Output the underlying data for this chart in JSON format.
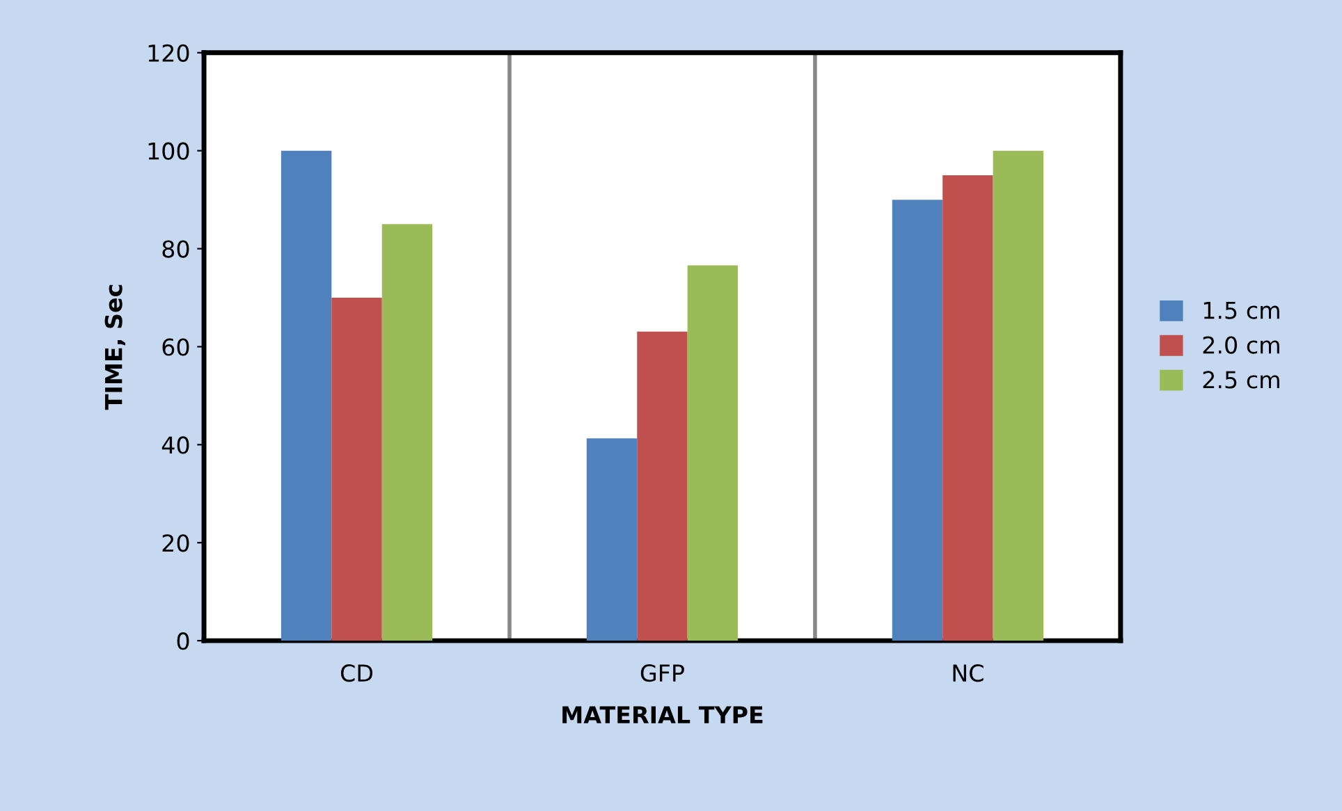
{
  "chart_data": {
    "type": "bar",
    "xlabel": "MATERIAL TYPE",
    "ylabel": "TIME, Sec",
    "categories": [
      "CD",
      "GFP",
      "NC"
    ],
    "series": [
      {
        "name": "1.5 cm",
        "color": "#4f81bd",
        "values": [
          100,
          41.3,
          90
        ]
      },
      {
        "name": "2.0 cm",
        "color": "#c0504d",
        "values": [
          70,
          63.1,
          95
        ]
      },
      {
        "name": "2.5 cm",
        "color": "#9bbb59",
        "values": [
          85,
          76.6,
          100
        ]
      }
    ],
    "ylim": [
      0,
      120
    ],
    "yticks": [
      0,
      20,
      40,
      60,
      80,
      100,
      120
    ],
    "grid": "x",
    "legend": "right"
  }
}
